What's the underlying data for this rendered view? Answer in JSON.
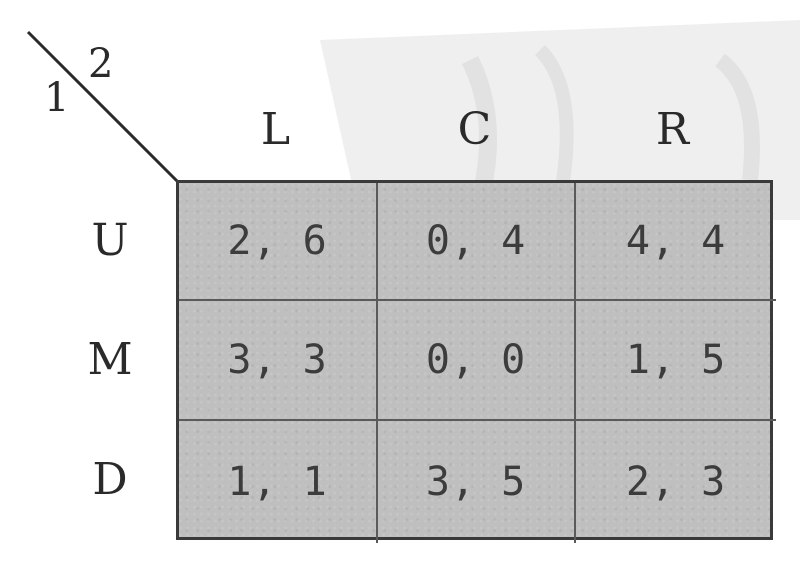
{
  "players": {
    "row_player": "1",
    "col_player": "2"
  },
  "columns": [
    "L",
    "C",
    "R"
  ],
  "rows": [
    "U",
    "M",
    "D"
  ],
  "payoffs": [
    [
      "2, 6",
      "0, 4",
      "4, 4"
    ],
    [
      "3, 3",
      "0, 0",
      "1, 5"
    ],
    [
      "1, 1",
      "3, 5",
      "2, 3"
    ]
  ],
  "colors": {
    "cell_fill": "#bfbfbf",
    "border": "#3a3a3a",
    "watermark": "#ececec"
  }
}
